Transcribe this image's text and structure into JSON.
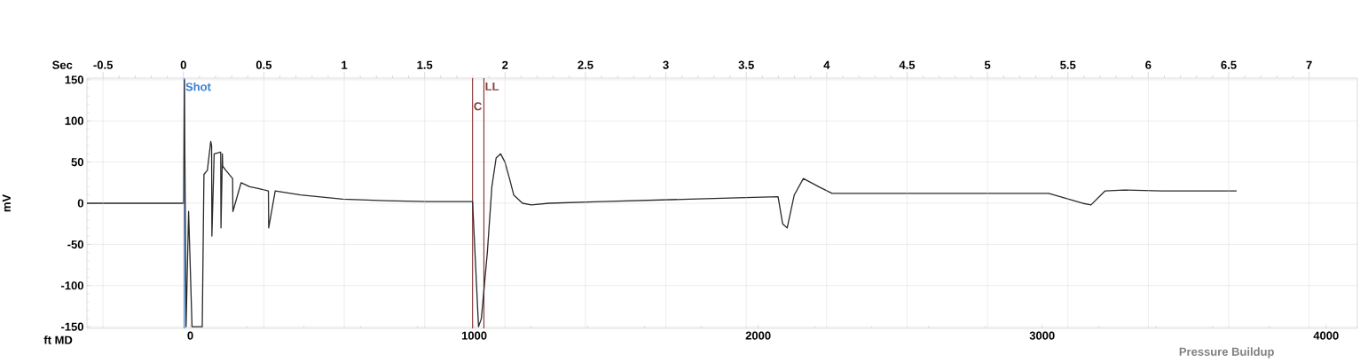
{
  "chart_data": {
    "type": "line",
    "xlabel": "ft MD",
    "x2label": "Sec",
    "ylabel": "mV",
    "series": [
      {
        "color": "#2a2a2a",
        "x": [
          -364,
          -24,
          -21,
          -15,
          -6,
          6,
          42,
          48,
          60,
          72,
          75,
          76,
          84,
          107,
          108,
          113,
          114,
          125,
          149,
          150,
          179,
          209,
          239,
          275,
          276,
          299,
          388,
          537,
          687,
          836,
          970,
          994,
          1015,
          1025,
          1046,
          1062,
          1077,
          1093,
          1108,
          1124,
          1139,
          1170,
          1201,
          1263,
          1449,
          1759,
          2070,
          2086,
          2102,
          2127,
          2159,
          2213,
          2260,
          2387,
          2705,
          3023,
          3142,
          3172,
          3222,
          3288,
          3421,
          3685
        ],
        "values": [
          0,
          0,
          150,
          -150,
          -10,
          -150,
          -150,
          35,
          40,
          75,
          70,
          -40,
          60,
          62,
          -30,
          60,
          45,
          40,
          30,
          -10,
          25,
          20,
          18,
          15,
          -30,
          15,
          10,
          5,
          3,
          2,
          2,
          2,
          -150,
          -140,
          -60,
          20,
          55,
          60,
          50,
          30,
          10,
          0,
          -2,
          0,
          2,
          5,
          8,
          -25,
          -30,
          10,
          30,
          20,
          12,
          12,
          12,
          12,
          0,
          -2,
          15,
          16,
          15,
          15
        ]
      }
    ],
    "xlim": [
      -364,
      4110
    ],
    "xticks": [
      0,
      1000,
      2000,
      3000,
      4000
    ],
    "x2lim": [
      -0.6,
      7.3
    ],
    "x2ticks": [
      -0.5,
      0,
      0.5,
      1,
      1.5,
      2,
      2.5,
      3,
      3.5,
      4,
      4.5,
      5,
      5.5,
      6,
      6.5,
      7
    ],
    "ylim": [
      -152,
      152
    ],
    "yticks": [
      -150,
      -100,
      -50,
      0,
      50,
      100,
      150
    ],
    "grid": true,
    "ref_lines": [
      {
        "axis": "x",
        "value": -21,
        "label": "Shot",
        "color": "#3a7fd0"
      },
      {
        "axis": "x",
        "value": 994,
        "label": "C",
        "color": "#8b3a3a"
      },
      {
        "axis": "x",
        "value": 1034,
        "label": "LL",
        "color": "#8b3a3a"
      }
    ],
    "annotations": [
      "Pressure Buildup"
    ]
  }
}
